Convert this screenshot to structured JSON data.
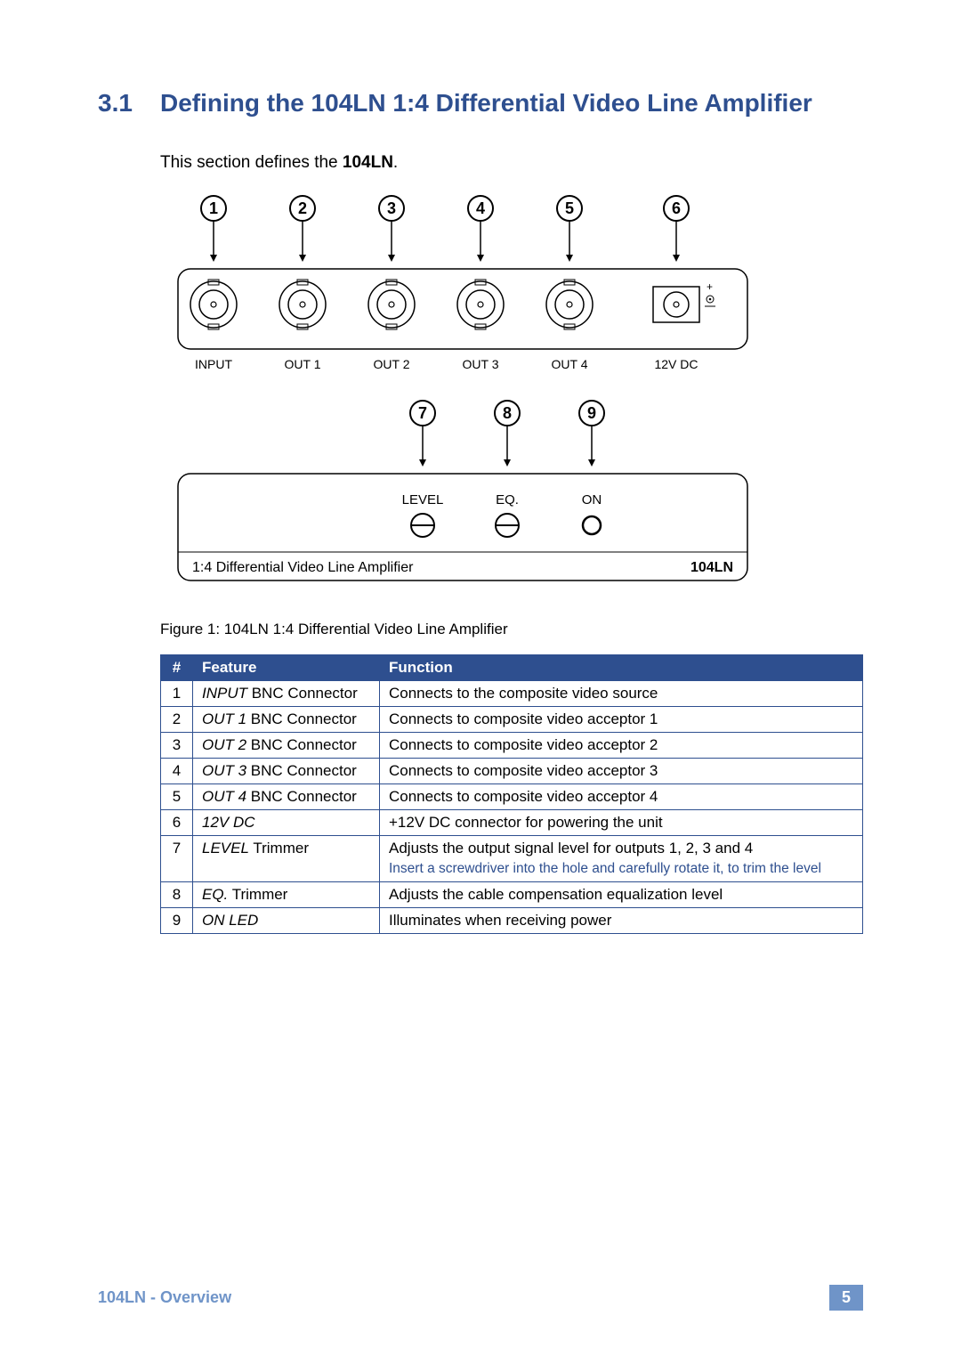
{
  "heading": {
    "num": "3.1",
    "text": "Defining the 104LN 1:4 Differential Video Line Amplifier"
  },
  "intro": {
    "pre": "This section defines the ",
    "bold": "104LN",
    "post": "."
  },
  "diagram": {
    "top": {
      "callouts": [
        "1",
        "2",
        "3",
        "4",
        "5",
        "6"
      ],
      "labels": [
        "INPUT",
        "OUT 1",
        "OUT 2",
        "OUT 3",
        "OUT 4",
        "12V DC"
      ]
    },
    "bottom": {
      "callouts": [
        "7",
        "8",
        "9"
      ],
      "labels": [
        "LEVEL",
        "EQ.",
        "ON"
      ],
      "panel_text": "1:4 Differential Video Line Amplifier",
      "model": "104LN"
    },
    "colors": {
      "stroke": "#000000",
      "text": "#000000"
    }
  },
  "caption": "Figure 1: 104LN 1:4 Differential Video Line Amplifier",
  "table": {
    "headers": [
      "#",
      "Feature",
      "Function"
    ],
    "rows": [
      {
        "n": "1",
        "feat_i": "INPUT",
        "feat_r": " BNC Connector",
        "fn": "Connects to the composite video source"
      },
      {
        "n": "2",
        "feat_i": "OUT 1",
        "feat_r": " BNC Connector",
        "fn": "Connects to composite video acceptor 1"
      },
      {
        "n": "3",
        "feat_i": "OUT 2",
        "feat_r": " BNC Connector",
        "fn": "Connects to composite video acceptor 2"
      },
      {
        "n": "4",
        "feat_i": "OUT 3",
        "feat_r": " BNC Connector",
        "fn": "Connects to composite video acceptor 3"
      },
      {
        "n": "5",
        "feat_i": "OUT 4",
        "feat_r": " BNC Connector",
        "fn": "Connects to composite video acceptor 4"
      },
      {
        "n": "6",
        "feat_i": "12V DC",
        "feat_r": "",
        "fn": "+12V DC connector for powering the unit"
      },
      {
        "n": "7",
        "feat_i": "LEVEL",
        "feat_r": " Trimmer",
        "fn": "Adjusts the output signal level for outputs 1, 2, 3 and 4",
        "note": "Insert a screwdriver into the hole and carefully rotate it, to trim the level"
      },
      {
        "n": "8",
        "feat_i": "EQ.",
        "feat_r": " Trimmer",
        "fn": "Adjusts the cable compensation equalization level"
      },
      {
        "n": "9",
        "feat_i": "ON LED",
        "feat_r": "",
        "fn": "Illuminates when receiving power"
      }
    ]
  },
  "footer": {
    "left": "104LN - Overview",
    "page": "5"
  }
}
